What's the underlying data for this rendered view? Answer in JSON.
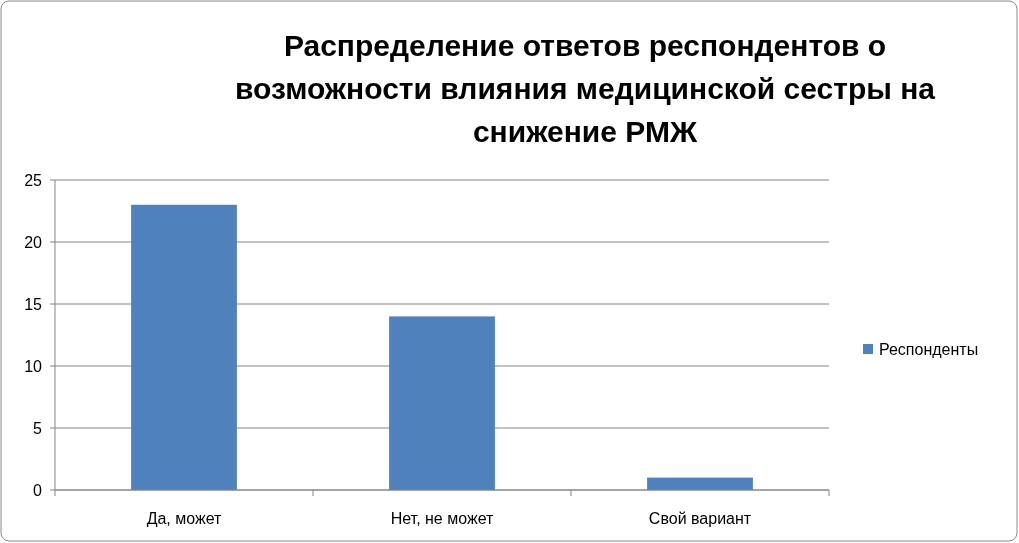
{
  "chart_data": {
    "type": "bar",
    "title": "Распределение ответов респондентов о возможности влияния медицинской сестры на снижение РМЖ",
    "categories": [
      "Да, может",
      "Нет, не может",
      "Свой вариант"
    ],
    "series": [
      {
        "name": "Респонденты",
        "color": "#4f81bd",
        "values": [
          23,
          14,
          1
        ]
      }
    ],
    "ylim": [
      0,
      25
    ],
    "yticks": [
      0,
      5,
      10,
      15,
      20,
      25
    ],
    "grid": "y",
    "legend": "right"
  }
}
